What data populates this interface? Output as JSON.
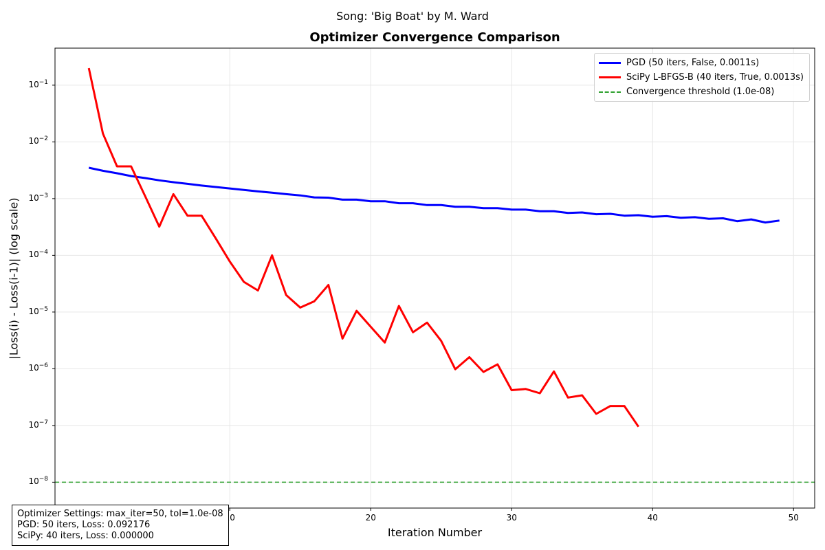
{
  "chart_data": {
    "type": "line",
    "suptitle": "Song: 'Big Boat' by M. Ward",
    "title": "Optimizer Convergence Comparison",
    "xlabel": "Iteration Number",
    "ylabel": "|Loss(i) - Loss(i-1)| (log scale)",
    "xlim": [
      -2.4,
      51.5
    ],
    "ylim": [
      3.5e-09,
      0.45
    ],
    "yscale": "log",
    "xticks": [
      10,
      20,
      30,
      40,
      50
    ],
    "yticks": [
      {
        "value": 1e-08,
        "base": "10",
        "exp": "−8"
      },
      {
        "value": 1e-07,
        "base": "10",
        "exp": "−7"
      },
      {
        "value": 1e-06,
        "base": "10",
        "exp": "−6"
      },
      {
        "value": 1e-05,
        "base": "10",
        "exp": "−5"
      },
      {
        "value": 0.0001,
        "base": "10",
        "exp": "−4"
      },
      {
        "value": 0.001,
        "base": "10",
        "exp": "−3"
      },
      {
        "value": 0.01,
        "base": "10",
        "exp": "−2"
      },
      {
        "value": 0.1,
        "base": "10",
        "exp": "−1"
      }
    ],
    "grid": true,
    "legend_position": "top-right",
    "series": [
      {
        "name": "PGD (50 iters, False, 0.0011s)",
        "color": "#0000ff",
        "x": [
          0,
          1,
          2,
          3,
          4,
          5,
          6,
          7,
          8,
          9,
          10,
          11,
          12,
          13,
          14,
          15,
          16,
          17,
          18,
          19,
          20,
          21,
          22,
          23,
          24,
          25,
          26,
          27,
          28,
          29,
          30,
          31,
          32,
          33,
          34,
          35,
          36,
          37,
          38,
          39,
          40,
          41,
          42,
          43,
          44,
          45,
          46,
          47,
          48,
          49
        ],
        "y": [
          0.0035,
          0.0031,
          0.0028,
          0.0025,
          0.0023,
          0.0021,
          0.00195,
          0.00182,
          0.0017,
          0.0016,
          0.00151,
          0.00142,
          0.00134,
          0.00127,
          0.0012,
          0.00114,
          0.00105,
          0.00104,
          0.00096,
          0.00096,
          0.0009,
          0.0009,
          0.00083,
          0.00083,
          0.00077,
          0.00077,
          0.00072,
          0.00072,
          0.00068,
          0.00068,
          0.00064,
          0.00064,
          0.0006,
          0.0006,
          0.00056,
          0.00057,
          0.00053,
          0.00054,
          0.0005,
          0.00051,
          0.00048,
          0.00049,
          0.00046,
          0.00047,
          0.00044,
          0.00045,
          0.0004,
          0.00043,
          0.00038,
          0.00041
        ]
      },
      {
        "name": "SciPy L-BFGS-B (40 iters, True, 0.0013s)",
        "color": "#ff0000",
        "x": [
          0,
          1,
          2,
          3,
          4,
          5,
          6,
          7,
          8,
          9,
          10,
          11,
          12,
          13,
          14,
          15,
          16,
          17,
          18,
          19,
          20,
          21,
          22,
          23,
          24,
          25,
          26,
          27,
          28,
          29,
          30,
          31,
          32,
          33,
          34,
          35,
          36,
          37,
          38,
          39
        ],
        "y": [
          0.2,
          0.014,
          0.0037,
          0.0037,
          0.0011,
          0.00032,
          0.0012,
          0.0005,
          0.0005,
          0.0002,
          7.8e-05,
          3.4e-05,
          2.4e-05,
          0.0001,
          2e-05,
          1.2e-05,
          1.55e-05,
          3e-05,
          3.4e-06,
          1.05e-05,
          5.5e-06,
          2.9e-06,
          1.28e-05,
          4.4e-06,
          6.5e-06,
          3.1e-06,
          9.8e-07,
          1.6e-06,
          8.8e-07,
          1.2e-06,
          4.2e-07,
          4.4e-07,
          3.7e-07,
          9e-07,
          3.1e-07,
          3.4e-07,
          1.6e-07,
          2.2e-07,
          2.2e-07,
          9.5e-08
        ]
      }
    ],
    "threshold": {
      "name": "Convergence threshold (1.0e-08)",
      "value": 1e-08,
      "color": "#2ca02c"
    }
  },
  "infobox": {
    "line1": "Optimizer Settings: max_iter=50, tol=1.0e-08",
    "line2": "PGD: 50 iters, Loss: 0.092176",
    "line3": "SciPy: 40 iters, Loss: 0.000000"
  }
}
